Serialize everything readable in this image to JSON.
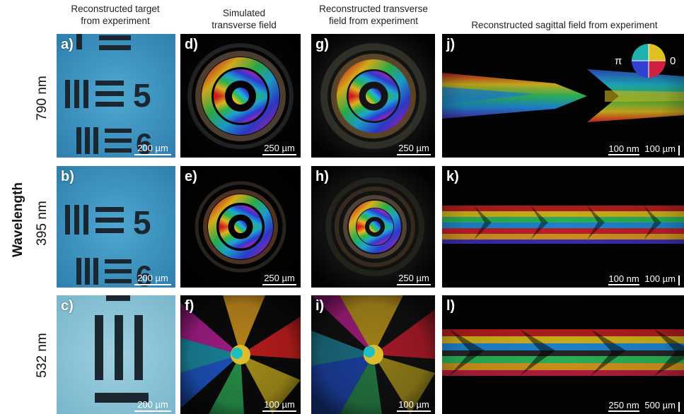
{
  "columns": {
    "c1": "Reconstructed target\nfrom experiment",
    "c2": "Simulated\ntransverse field",
    "c3": "Reconstructed transverse\nfield from experiment",
    "c4": "Reconstructed sagittal field from experiment"
  },
  "y_axis_label": "Wavelength",
  "rows": [
    "790 nm",
    "395 nm",
    "532 nm"
  ],
  "panels": {
    "a": "a)",
    "b": "b)",
    "c": "c)",
    "d": "d)",
    "e": "e)",
    "f": "f)",
    "g": "g)",
    "h": "h)",
    "i": "i)",
    "j": "j)",
    "k": "k)",
    "l": "l)"
  },
  "scalebars": {
    "a": "200 µm",
    "b": "200 µm",
    "c": "200 µm",
    "d": "250 µm",
    "e": "250 µm",
    "f": "100 µm",
    "g": "250 µm",
    "h": "250 µm",
    "i": "100 µm",
    "j_h": "100 nm",
    "j_v": "100 µm",
    "k_h": "100 nm",
    "k_v": "100 µm",
    "l_h": "250 nm",
    "l_v": "500 µm"
  },
  "phase_legend": {
    "left": "π",
    "right": "0"
  },
  "target_digits": {
    "a1": "5",
    "a2": "6",
    "b1": "5",
    "b2": "6"
  }
}
